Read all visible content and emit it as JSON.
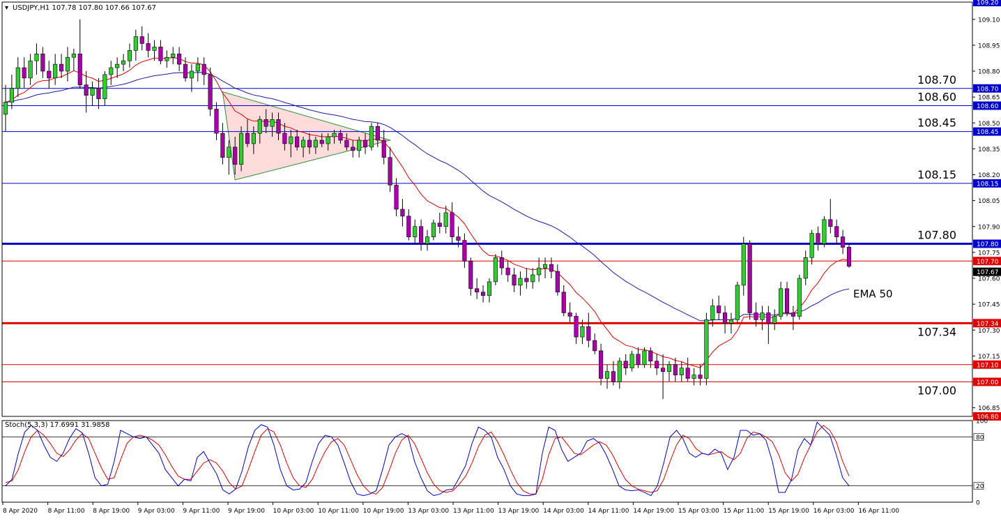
{
  "header": {
    "symbol_label": "USDJPY,H1  107.78 107.80 107.66 107.67"
  },
  "oscillator": {
    "label": "Stoch(5,3,3) 17.6991 31.9858",
    "scale": [
      "100",
      "80",
      "20",
      "0"
    ],
    "levels": [
      80,
      20
    ],
    "main_color": "#0000cc",
    "signal_color": "#e00000",
    "main_values": [
      20,
      28,
      60,
      86,
      94,
      88,
      70,
      55,
      50,
      60,
      78,
      90,
      85,
      60,
      30,
      20,
      22,
      50,
      88,
      84,
      80,
      78,
      80,
      70,
      60,
      40,
      30,
      20,
      28,
      26,
      55,
      62,
      48,
      35,
      15,
      10,
      16,
      38,
      68,
      88,
      95,
      92,
      70,
      40,
      20,
      15,
      16,
      24,
      50,
      72,
      82,
      80,
      70,
      48,
      25,
      10,
      8,
      10,
      14,
      40,
      70,
      80,
      84,
      80,
      50,
      30,
      14,
      8,
      10,
      15,
      16,
      30,
      45,
      72,
      92,
      88,
      80,
      55,
      40,
      20,
      10,
      8,
      8,
      10,
      60,
      92,
      88,
      65,
      50,
      55,
      60,
      75,
      78,
      72,
      58,
      40,
      20,
      15,
      14,
      15,
      12,
      8,
      20,
      48,
      80,
      88,
      78,
      60,
      55,
      60,
      58,
      65,
      60,
      40,
      55,
      88,
      88,
      82,
      84,
      76,
      50,
      12,
      12,
      28,
      64,
      78,
      70,
      98,
      90,
      82,
      58,
      30,
      20
    ],
    "signal_values": [
      24,
      26,
      40,
      62,
      80,
      88,
      82,
      72,
      60,
      56,
      64,
      76,
      84,
      78,
      60,
      42,
      28,
      30,
      52,
      72,
      80,
      82,
      80,
      76,
      70,
      58,
      44,
      32,
      28,
      28,
      38,
      48,
      52,
      48,
      38,
      24,
      16,
      20,
      40,
      62,
      82,
      90,
      86,
      70,
      48,
      30,
      20,
      18,
      28,
      46,
      62,
      74,
      78,
      70,
      52,
      34,
      20,
      12,
      10,
      18,
      38,
      60,
      76,
      82,
      72,
      54,
      36,
      22,
      14,
      12,
      14,
      22,
      32,
      48,
      68,
      82,
      86,
      74,
      58,
      40,
      24,
      14,
      10,
      10,
      28,
      58,
      78,
      80,
      70,
      60,
      58,
      64,
      70,
      74,
      70,
      58,
      42,
      28,
      20,
      16,
      14,
      12,
      14,
      28,
      50,
      70,
      82,
      78,
      66,
      60,
      58,
      60,
      62,
      56,
      52,
      60,
      78,
      86,
      84,
      80,
      74,
      58,
      36,
      26,
      34,
      54,
      70,
      86,
      94,
      88,
      74,
      50,
      32
    ]
  },
  "chart_data": {
    "type": "candlestick",
    "symbol": "USDJPY",
    "timeframe": "H1",
    "ohlc_last": {
      "open": 107.78,
      "high": 107.8,
      "low": 107.66,
      "close": 107.67
    },
    "ylim": [
      106.8,
      109.2
    ],
    "y_ticks": [
      109.1,
      108.95,
      108.8,
      108.65,
      108.5,
      108.35,
      108.2,
      108.05,
      107.9,
      107.75,
      107.6,
      107.45,
      107.3,
      107.15,
      107.0,
      106.85
    ],
    "x_tick_labels": [
      "8 Apr 2020",
      "8 Apr 11:00",
      "8 Apr 19:00",
      "9 Apr 03:00",
      "9 Apr 11:00",
      "9 Apr 19:00",
      "10 Apr 03:00",
      "10 Apr 11:00",
      "10 Apr 19:00",
      "13 Apr 03:00",
      "13 Apr 11:00",
      "13 Apr 19:00",
      "14 Apr 03:00",
      "14 Apr 11:00",
      "14 Apr 19:00",
      "15 Apr 03:00",
      "15 Apr 11:00",
      "15 Apr 19:00",
      "16 Apr 03:00",
      "16 Apr 11:00"
    ],
    "bull_color": "#33cc33",
    "bear_color": "#aa00aa",
    "candles": [
      {
        "o": 108.55,
        "h": 108.72,
        "l": 108.45,
        "c": 108.62
      },
      {
        "o": 108.62,
        "h": 108.78,
        "l": 108.58,
        "c": 108.7
      },
      {
        "o": 108.7,
        "h": 108.88,
        "l": 108.65,
        "c": 108.82
      },
      {
        "o": 108.82,
        "h": 108.88,
        "l": 108.7,
        "c": 108.76
      },
      {
        "o": 108.76,
        "h": 108.9,
        "l": 108.72,
        "c": 108.86
      },
      {
        "o": 108.86,
        "h": 108.96,
        "l": 108.78,
        "c": 108.9
      },
      {
        "o": 108.9,
        "h": 108.94,
        "l": 108.76,
        "c": 108.8
      },
      {
        "o": 108.8,
        "h": 108.86,
        "l": 108.7,
        "c": 108.76
      },
      {
        "o": 108.76,
        "h": 108.9,
        "l": 108.72,
        "c": 108.84
      },
      {
        "o": 108.84,
        "h": 108.9,
        "l": 108.76,
        "c": 108.8
      },
      {
        "o": 108.8,
        "h": 108.94,
        "l": 108.74,
        "c": 108.88
      },
      {
        "o": 108.88,
        "h": 108.93,
        "l": 108.8,
        "c": 108.9
      },
      {
        "o": 108.9,
        "h": 109.1,
        "l": 108.7,
        "c": 108.72
      },
      {
        "o": 108.72,
        "h": 108.8,
        "l": 108.56,
        "c": 108.66
      },
      {
        "o": 108.66,
        "h": 108.74,
        "l": 108.6,
        "c": 108.7
      },
      {
        "o": 108.7,
        "h": 108.76,
        "l": 108.58,
        "c": 108.64
      },
      {
        "o": 108.64,
        "h": 108.8,
        "l": 108.6,
        "c": 108.78
      },
      {
        "o": 108.78,
        "h": 108.86,
        "l": 108.72,
        "c": 108.82
      },
      {
        "o": 108.82,
        "h": 108.88,
        "l": 108.76,
        "c": 108.84
      },
      {
        "o": 108.84,
        "h": 108.9,
        "l": 108.8,
        "c": 108.86
      },
      {
        "o": 108.86,
        "h": 108.96,
        "l": 108.82,
        "c": 108.92
      },
      {
        "o": 108.92,
        "h": 109.04,
        "l": 108.86,
        "c": 109.0
      },
      {
        "o": 109.0,
        "h": 109.06,
        "l": 108.92,
        "c": 108.96
      },
      {
        "o": 108.96,
        "h": 109.02,
        "l": 108.88,
        "c": 108.92
      },
      {
        "o": 108.92,
        "h": 108.98,
        "l": 108.86,
        "c": 108.94
      },
      {
        "o": 108.94,
        "h": 108.98,
        "l": 108.84,
        "c": 108.86
      },
      {
        "o": 108.86,
        "h": 108.92,
        "l": 108.82,
        "c": 108.88
      },
      {
        "o": 108.88,
        "h": 108.94,
        "l": 108.84,
        "c": 108.9
      },
      {
        "o": 108.9,
        "h": 108.94,
        "l": 108.8,
        "c": 108.84
      },
      {
        "o": 108.84,
        "h": 108.88,
        "l": 108.74,
        "c": 108.76
      },
      {
        "o": 108.76,
        "h": 108.84,
        "l": 108.68,
        "c": 108.8
      },
      {
        "o": 108.8,
        "h": 108.88,
        "l": 108.74,
        "c": 108.84
      },
      {
        "o": 108.84,
        "h": 108.88,
        "l": 108.72,
        "c": 108.78
      },
      {
        "o": 108.78,
        "h": 108.82,
        "l": 108.54,
        "c": 108.58
      },
      {
        "o": 108.58,
        "h": 108.62,
        "l": 108.4,
        "c": 108.44
      },
      {
        "o": 108.44,
        "h": 108.5,
        "l": 108.26,
        "c": 108.3
      },
      {
        "o": 108.3,
        "h": 108.4,
        "l": 108.2,
        "c": 108.36
      },
      {
        "o": 108.36,
        "h": 108.42,
        "l": 108.2,
        "c": 108.26
      },
      {
        "o": 108.26,
        "h": 108.48,
        "l": 108.22,
        "c": 108.44
      },
      {
        "o": 108.44,
        "h": 108.52,
        "l": 108.36,
        "c": 108.38
      },
      {
        "o": 108.38,
        "h": 108.48,
        "l": 108.32,
        "c": 108.44
      },
      {
        "o": 108.44,
        "h": 108.54,
        "l": 108.38,
        "c": 108.52
      },
      {
        "o": 108.52,
        "h": 108.58,
        "l": 108.44,
        "c": 108.48
      },
      {
        "o": 108.48,
        "h": 108.56,
        "l": 108.42,
        "c": 108.52
      },
      {
        "o": 108.52,
        "h": 108.56,
        "l": 108.4,
        "c": 108.44
      },
      {
        "o": 108.44,
        "h": 108.5,
        "l": 108.34,
        "c": 108.38
      },
      {
        "o": 108.38,
        "h": 108.46,
        "l": 108.3,
        "c": 108.42
      },
      {
        "o": 108.42,
        "h": 108.46,
        "l": 108.34,
        "c": 108.36
      },
      {
        "o": 108.36,
        "h": 108.42,
        "l": 108.3,
        "c": 108.4
      },
      {
        "o": 108.4,
        "h": 108.44,
        "l": 108.32,
        "c": 108.36
      },
      {
        "o": 108.36,
        "h": 108.42,
        "l": 108.32,
        "c": 108.4
      },
      {
        "o": 108.4,
        "h": 108.44,
        "l": 108.36,
        "c": 108.38
      },
      {
        "o": 108.38,
        "h": 108.44,
        "l": 108.34,
        "c": 108.42
      },
      {
        "o": 108.42,
        "h": 108.46,
        "l": 108.38,
        "c": 108.44
      },
      {
        "o": 108.44,
        "h": 108.46,
        "l": 108.38,
        "c": 108.4
      },
      {
        "o": 108.4,
        "h": 108.44,
        "l": 108.34,
        "c": 108.36
      },
      {
        "o": 108.36,
        "h": 108.4,
        "l": 108.3,
        "c": 108.34
      },
      {
        "o": 108.34,
        "h": 108.42,
        "l": 108.3,
        "c": 108.4
      },
      {
        "o": 108.4,
        "h": 108.44,
        "l": 108.32,
        "c": 108.36
      },
      {
        "o": 108.36,
        "h": 108.5,
        "l": 108.34,
        "c": 108.48
      },
      {
        "o": 108.48,
        "h": 108.5,
        "l": 108.36,
        "c": 108.4
      },
      {
        "o": 108.4,
        "h": 108.46,
        "l": 108.26,
        "c": 108.3
      },
      {
        "o": 108.3,
        "h": 108.36,
        "l": 108.1,
        "c": 108.14
      },
      {
        "o": 108.14,
        "h": 108.18,
        "l": 107.96,
        "c": 108.0
      },
      {
        "o": 108.0,
        "h": 108.06,
        "l": 107.9,
        "c": 107.96
      },
      {
        "o": 107.96,
        "h": 108.0,
        "l": 107.82,
        "c": 107.84
      },
      {
        "o": 107.84,
        "h": 107.94,
        "l": 107.8,
        "c": 107.9
      },
      {
        "o": 107.9,
        "h": 107.94,
        "l": 107.76,
        "c": 107.8
      },
      {
        "o": 107.8,
        "h": 107.88,
        "l": 107.76,
        "c": 107.84
      },
      {
        "o": 107.84,
        "h": 107.94,
        "l": 107.82,
        "c": 107.92
      },
      {
        "o": 107.92,
        "h": 107.98,
        "l": 107.86,
        "c": 107.9
      },
      {
        "o": 107.9,
        "h": 108.02,
        "l": 107.86,
        "c": 107.98
      },
      {
        "o": 107.98,
        "h": 108.04,
        "l": 107.8,
        "c": 107.84
      },
      {
        "o": 107.84,
        "h": 107.9,
        "l": 107.78,
        "c": 107.82
      },
      {
        "o": 107.82,
        "h": 107.86,
        "l": 107.66,
        "c": 107.7
      },
      {
        "o": 107.7,
        "h": 107.72,
        "l": 107.5,
        "c": 107.54
      },
      {
        "o": 107.54,
        "h": 107.6,
        "l": 107.48,
        "c": 107.52
      },
      {
        "o": 107.52,
        "h": 107.56,
        "l": 107.46,
        "c": 107.5
      },
      {
        "o": 107.5,
        "h": 107.6,
        "l": 107.46,
        "c": 107.58
      },
      {
        "o": 107.58,
        "h": 107.74,
        "l": 107.56,
        "c": 107.72
      },
      {
        "o": 107.72,
        "h": 107.76,
        "l": 107.62,
        "c": 107.66
      },
      {
        "o": 107.66,
        "h": 107.7,
        "l": 107.58,
        "c": 107.62
      },
      {
        "o": 107.62,
        "h": 107.66,
        "l": 107.52,
        "c": 107.56
      },
      {
        "o": 107.56,
        "h": 107.64,
        "l": 107.5,
        "c": 107.6
      },
      {
        "o": 107.6,
        "h": 107.66,
        "l": 107.54,
        "c": 107.58
      },
      {
        "o": 107.58,
        "h": 107.66,
        "l": 107.54,
        "c": 107.62
      },
      {
        "o": 107.62,
        "h": 107.72,
        "l": 107.58,
        "c": 107.66
      },
      {
        "o": 107.66,
        "h": 107.72,
        "l": 107.6,
        "c": 107.68
      },
      {
        "o": 107.68,
        "h": 107.72,
        "l": 107.6,
        "c": 107.64
      },
      {
        "o": 107.64,
        "h": 107.68,
        "l": 107.5,
        "c": 107.52
      },
      {
        "o": 107.52,
        "h": 107.56,
        "l": 107.38,
        "c": 107.4
      },
      {
        "o": 107.4,
        "h": 107.46,
        "l": 107.34,
        "c": 107.38
      },
      {
        "o": 107.38,
        "h": 107.4,
        "l": 107.22,
        "c": 107.26
      },
      {
        "o": 107.26,
        "h": 107.36,
        "l": 107.22,
        "c": 107.32
      },
      {
        "o": 107.32,
        "h": 107.4,
        "l": 107.2,
        "c": 107.24
      },
      {
        "o": 107.24,
        "h": 107.28,
        "l": 107.16,
        "c": 107.18
      },
      {
        "o": 107.18,
        "h": 107.22,
        "l": 106.98,
        "c": 107.02
      },
      {
        "o": 107.02,
        "h": 107.1,
        "l": 106.96,
        "c": 107.06
      },
      {
        "o": 107.06,
        "h": 107.12,
        "l": 106.98,
        "c": 107.0
      },
      {
        "o": 107.0,
        "h": 107.14,
        "l": 106.96,
        "c": 107.12
      },
      {
        "o": 107.12,
        "h": 107.16,
        "l": 107.04,
        "c": 107.08
      },
      {
        "o": 107.08,
        "h": 107.18,
        "l": 107.06,
        "c": 107.16
      },
      {
        "o": 107.16,
        "h": 107.2,
        "l": 107.08,
        "c": 107.1
      },
      {
        "o": 107.1,
        "h": 107.2,
        "l": 107.08,
        "c": 107.18
      },
      {
        "o": 107.18,
        "h": 107.2,
        "l": 107.08,
        "c": 107.12
      },
      {
        "o": 107.12,
        "h": 107.16,
        "l": 107.04,
        "c": 107.08
      },
      {
        "o": 107.08,
        "h": 107.16,
        "l": 106.9,
        "c": 107.06
      },
      {
        "o": 107.06,
        "h": 107.12,
        "l": 107.0,
        "c": 107.1
      },
      {
        "o": 107.1,
        "h": 107.14,
        "l": 107.0,
        "c": 107.04
      },
      {
        "o": 107.04,
        "h": 107.12,
        "l": 107.0,
        "c": 107.08
      },
      {
        "o": 107.08,
        "h": 107.14,
        "l": 107.0,
        "c": 107.02
      },
      {
        "o": 107.02,
        "h": 107.08,
        "l": 106.98,
        "c": 107.04
      },
      {
        "o": 107.04,
        "h": 107.1,
        "l": 106.98,
        "c": 107.02
      },
      {
        "o": 107.02,
        "h": 107.4,
        "l": 106.98,
        "c": 107.36
      },
      {
        "o": 107.36,
        "h": 107.48,
        "l": 107.32,
        "c": 107.44
      },
      {
        "o": 107.44,
        "h": 107.5,
        "l": 107.36,
        "c": 107.4
      },
      {
        "o": 107.4,
        "h": 107.44,
        "l": 107.28,
        "c": 107.34
      },
      {
        "o": 107.34,
        "h": 107.4,
        "l": 107.28,
        "c": 107.36
      },
      {
        "o": 107.36,
        "h": 107.58,
        "l": 107.34,
        "c": 107.56
      },
      {
        "o": 107.56,
        "h": 107.84,
        "l": 107.5,
        "c": 107.8
      },
      {
        "o": 107.8,
        "h": 107.82,
        "l": 107.36,
        "c": 107.4
      },
      {
        "o": 107.4,
        "h": 107.46,
        "l": 107.32,
        "c": 107.36
      },
      {
        "o": 107.36,
        "h": 107.44,
        "l": 107.3,
        "c": 107.4
      },
      {
        "o": 107.4,
        "h": 107.44,
        "l": 107.22,
        "c": 107.34
      },
      {
        "o": 107.34,
        "h": 107.42,
        "l": 107.3,
        "c": 107.38
      },
      {
        "o": 107.38,
        "h": 107.58,
        "l": 107.36,
        "c": 107.54
      },
      {
        "o": 107.54,
        "h": 107.58,
        "l": 107.38,
        "c": 107.4
      },
      {
        "o": 107.4,
        "h": 107.44,
        "l": 107.3,
        "c": 107.38
      },
      {
        "o": 107.38,
        "h": 107.62,
        "l": 107.36,
        "c": 107.6
      },
      {
        "o": 107.6,
        "h": 107.76,
        "l": 107.56,
        "c": 107.72
      },
      {
        "o": 107.72,
        "h": 107.88,
        "l": 107.68,
        "c": 107.86
      },
      {
        "o": 107.86,
        "h": 107.9,
        "l": 107.76,
        "c": 107.8
      },
      {
        "o": 107.8,
        "h": 107.96,
        "l": 107.78,
        "c": 107.94
      },
      {
        "o": 107.94,
        "h": 108.06,
        "l": 107.86,
        "c": 107.9
      },
      {
        "o": 107.9,
        "h": 107.94,
        "l": 107.8,
        "c": 107.84
      },
      {
        "o": 107.84,
        "h": 107.88,
        "l": 107.74,
        "c": 107.78
      },
      {
        "o": 107.78,
        "h": 107.8,
        "l": 107.66,
        "c": 107.67
      }
    ],
    "ema_fast": {
      "color": "#e00000"
    },
    "ema_slow": {
      "name": "EMA 50",
      "color": "#1a1aa0"
    },
    "horizontal_levels": [
      {
        "price": 109.2,
        "label": "",
        "tag": "109.20",
        "color": "#0000cc",
        "width": 1
      },
      {
        "price": 108.7,
        "label": "108.70",
        "tag": "108.70",
        "color": "#0000cc",
        "width": 1
      },
      {
        "price": 108.6,
        "label": "108.60",
        "tag": "108.60",
        "color": "#0000cc",
        "width": 1
      },
      {
        "price": 108.45,
        "label": "108.45",
        "tag": "108.45",
        "color": "#0000cc",
        "width": 1
      },
      {
        "price": 108.15,
        "label": "108.15",
        "tag": "108.15",
        "color": "#0000cc",
        "width": 1
      },
      {
        "price": 107.8,
        "label": "107.80",
        "tag": "107.80",
        "color": "#0000cc",
        "width": 3
      },
      {
        "price": 107.7,
        "label": "",
        "tag": "107.70",
        "color": "#e00000",
        "width": 1
      },
      {
        "price": 107.34,
        "label": "107.34",
        "tag": "107.34",
        "color": "#e00000",
        "width": 3
      },
      {
        "price": 107.1,
        "label": "",
        "tag": "107.10",
        "color": "#e00000",
        "width": 1
      },
      {
        "price": 107.0,
        "label": "107.00",
        "tag": "107.00",
        "color": "#e00000",
        "width": 1
      },
      {
        "price": 106.8,
        "label": "",
        "tag": "106.80",
        "color": "#e00000",
        "width": 1
      }
    ],
    "current_price_tag": "107.67",
    "triangle": {
      "fill": "#ffd6d6",
      "stroke": "#2e8b2e",
      "points": [
        {
          "bar": 35,
          "price": 108.68
        },
        {
          "bar": 37,
          "price": 108.17
        },
        {
          "bar": 62,
          "price": 108.4
        }
      ]
    }
  }
}
